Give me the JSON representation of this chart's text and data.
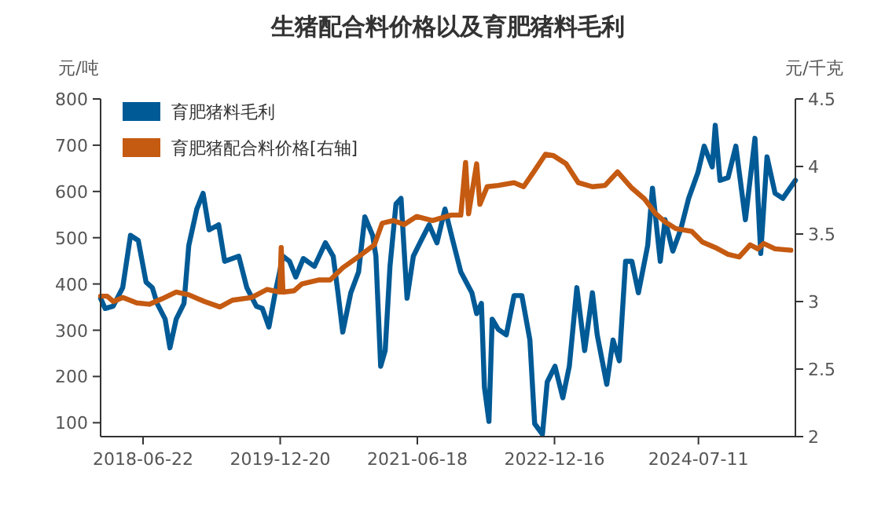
{
  "chart_data": {
    "type": "line",
    "title": "生猪配合料价格以及育肥猪料毛利",
    "ylabel": "元/吨",
    "y2label": "元/千克",
    "xlim": [
      "2018-01-04",
      "2025-08-01"
    ],
    "xticks": [
      "2018-06-22",
      "2019-12-20",
      "2021-06-18",
      "2022-12-16",
      "2024-07-11"
    ],
    "ylim": [
      70,
      800
    ],
    "yticks": [
      100,
      200,
      300,
      400,
      500,
      600,
      700,
      800
    ],
    "y2lim": [
      2,
      4.5
    ],
    "y2ticks": [
      2,
      2.5,
      3,
      3.5,
      4,
      4.5
    ],
    "legend": "top left",
    "grid": false,
    "marker": "none",
    "line_style": "solid",
    "series": [
      {
        "name": "育肥猪料毛利",
        "color": "#005a96",
        "x": [
          "2018-01-04",
          "2018-01-22",
          "2018-02-23",
          "2018-04-02",
          "2018-05-03",
          "2018-06-03",
          "2018-07-04",
          "2018-07-29",
          "2018-08-17",
          "2018-09-18",
          "2018-10-07",
          "2018-11-01",
          "2018-12-02",
          "2018-12-21",
          "2019-01-22",
          "2019-02-16",
          "2019-03-12",
          "2019-04-19",
          "2019-05-13",
          "2019-07-08",
          "2019-08-09",
          "2019-09-16",
          "2019-10-10",
          "2019-11-05",
          "2019-11-30",
          "2019-12-31",
          "2020-01-26",
          "2020-02-20",
          "2020-03-21",
          "2020-05-04",
          "2020-06-17",
          "2020-07-18",
          "2020-08-06",
          "2020-08-25",
          "2020-09-26",
          "2020-10-27",
          "2020-11-21",
          "2020-12-22",
          "2021-01-04",
          "2021-01-23",
          "2021-02-10",
          "2021-03-01",
          "2021-03-25",
          "2021-04-14",
          "2021-05-08",
          "2021-06-02",
          "2021-07-03",
          "2021-08-04",
          "2021-09-04",
          "2021-10-06",
          "2021-11-06",
          "2021-12-08",
          "2022-01-21",
          "2022-02-09",
          "2022-02-28",
          "2022-03-12",
          "2022-03-30",
          "2022-04-12",
          "2022-05-06",
          "2022-06-07",
          "2022-07-08",
          "2022-08-08",
          "2022-09-09",
          "2022-09-28",
          "2022-10-29",
          "2022-11-17",
          "2022-12-18",
          "2023-01-18",
          "2023-02-13",
          "2023-03-15",
          "2023-04-15",
          "2023-05-16",
          "2023-06-04",
          "2023-07-12",
          "2023-08-06",
          "2023-08-31",
          "2023-09-25",
          "2023-10-20",
          "2023-11-15",
          "2023-12-22",
          "2024-01-10",
          "2024-02-10",
          "2024-02-29",
          "2024-03-31",
          "2024-05-01",
          "2024-06-02",
          "2024-07-09",
          "2024-08-03",
          "2024-09-04",
          "2024-09-16",
          "2024-10-05",
          "2024-11-06",
          "2024-12-07",
          "2025-01-14",
          "2025-02-21",
          "2025-03-16",
          "2025-04-10",
          "2025-05-12",
          "2025-06-12",
          "2025-08-01"
        ],
        "values": [
          369,
          347,
          352,
          392,
          505,
          494,
          404,
          392,
          358,
          324,
          262,
          324,
          358,
          483,
          562,
          596,
          517,
          528,
          449,
          460,
          392,
          352,
          347,
          307,
          381,
          460,
          449,
          415,
          455,
          438,
          489,
          460,
          381,
          296,
          381,
          426,
          545,
          505,
          460,
          222,
          256,
          438,
          573,
          585,
          369,
          460,
          494,
          528,
          489,
          562,
          494,
          426,
          381,
          336,
          358,
          177,
          103,
          324,
          302,
          290,
          375,
          375,
          279,
          98,
          75,
          188,
          222,
          154,
          222,
          392,
          256,
          381,
          290,
          183,
          279,
          234,
          449,
          449,
          381,
          483,
          607,
          449,
          539,
          471,
          517,
          585,
          641,
          698,
          653,
          743,
          624,
          630,
          698,
          539,
          715,
          466,
          675,
          596,
          585,
          624
        ]
      },
      {
        "name": "育肥猪配合料价格[右轴]",
        "color": "#c55a11",
        "axis": "y2",
        "x": [
          "2018-01-04",
          "2018-01-30",
          "2018-02-24",
          "2018-04-02",
          "2018-05-28",
          "2018-07-17",
          "2018-09-05",
          "2018-11-01",
          "2018-12-21",
          "2019-02-22",
          "2019-04-24",
          "2019-06-13",
          "2019-08-28",
          "2019-10-29",
          "2019-12-18",
          "2019-12-24",
          "2019-12-31",
          "2020-02-14",
          "2020-03-15",
          "2020-05-23",
          "2020-07-06",
          "2020-08-25",
          "2020-11-09",
          "2020-12-29",
          "2021-01-29",
          "2021-03-14",
          "2021-04-26",
          "2021-06-15",
          "2021-08-17",
          "2021-10-31",
          "2021-12-08",
          "2021-12-27",
          "2022-01-08",
          "2022-02-09",
          "2022-02-22",
          "2022-03-23",
          "2022-05-06",
          "2022-07-08",
          "2022-08-15",
          "2022-09-28",
          "2022-11-10",
          "2022-12-12",
          "2023-01-31",
          "2023-03-21",
          "2023-05-16",
          "2023-07-05",
          "2023-08-24",
          "2023-10-20",
          "2023-12-09",
          "2024-01-23",
          "2024-02-29",
          "2024-04-12",
          "2024-06-14",
          "2024-07-27",
          "2024-09-16",
          "2024-11-06",
          "2024-12-20",
          "2025-02-02",
          "2025-03-04",
          "2025-03-28",
          "2025-05-12",
          "2025-07-14"
        ],
        "values": [
          3.04,
          3.04,
          3.0,
          3.03,
          2.99,
          2.98,
          3.02,
          3.07,
          3.05,
          3.0,
          2.96,
          3.01,
          3.03,
          3.09,
          3.07,
          3.4,
          3.07,
          3.08,
          3.13,
          3.16,
          3.16,
          3.25,
          3.35,
          3.42,
          3.58,
          3.6,
          3.57,
          3.63,
          3.6,
          3.64,
          3.64,
          4.03,
          3.65,
          4.02,
          3.72,
          3.85,
          3.86,
          3.88,
          3.85,
          3.97,
          4.09,
          4.08,
          4.02,
          3.88,
          3.85,
          3.86,
          3.96,
          3.84,
          3.76,
          3.65,
          3.59,
          3.54,
          3.52,
          3.44,
          3.4,
          3.35,
          3.33,
          3.42,
          3.39,
          3.43,
          3.39,
          3.38
        ]
      }
    ]
  }
}
